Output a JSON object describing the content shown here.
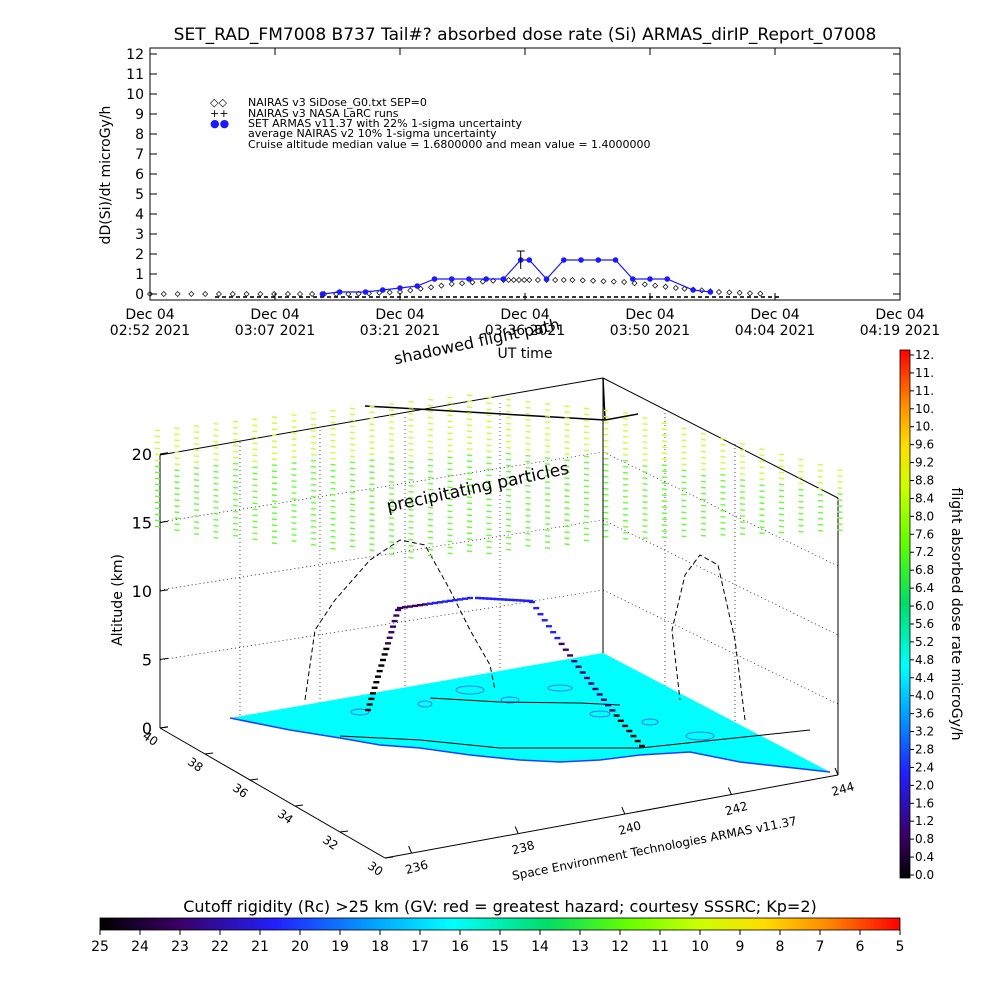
{
  "title": "SET_RAD_FM7008  B737 Tail#? absorbed dose rate (Si) ARMAS_dirIP_Report_07008",
  "time_panel": {
    "ylabel": "dD(Si)/dt microGy/h",
    "xlabel": "UT time",
    "x_ticks": [
      {
        "line1": "Dec 04",
        "line2": "02:52 2021"
      },
      {
        "line1": "Dec 04",
        "line2": "03:07 2021"
      },
      {
        "line1": "Dec 04",
        "line2": "03:21 2021"
      },
      {
        "line1": "Dec 04",
        "line2": "03:36 2021"
      },
      {
        "line1": "Dec 04",
        "line2": "03:50 2021"
      },
      {
        "line1": "Dec 04",
        "line2": "04:04 2021"
      },
      {
        "line1": "Dec 04",
        "line2": "04:19 2021"
      }
    ],
    "legend": [
      {
        "symbol": "◇◇",
        "text": "NAIRAS v3 SiDose_G0.txt SEP=0"
      },
      {
        "symbol": "++",
        "text": "NAIRAS v3 NASA LaRC runs"
      },
      {
        "symbol": "●●",
        "text": "SET ARMAS v11.37 with 22% 1-sigma uncertainty",
        "color": "#1a1aff"
      },
      {
        "symbol": "",
        "text": "average NAIRAS v2 10% 1-sigma uncertainty"
      },
      {
        "symbol": "",
        "text": "Cruise altitude median value = 1.6800000 and mean value = 1.4000000"
      }
    ]
  },
  "map_panel": {
    "ylabel": "Altitude (km)",
    "z_ticks": [
      "0",
      "5",
      "10",
      "15",
      "20"
    ],
    "lat_ticks": [
      "40",
      "38",
      "36",
      "34",
      "32",
      "30"
    ],
    "lon_ticks": [
      "236",
      "238",
      "240",
      "242",
      "244"
    ],
    "annotation_top": "shadowed flight path",
    "annotation_mid": "precipitating particles",
    "credit": "Space Environment Technologies ARMAS v11.37"
  },
  "right_colorbar": {
    "label": "flight absorbed dose rate microGy/h",
    "ticks": [
      "12.",
      "11.",
      "11.",
      "10.",
      "10.",
      "9.6",
      "9.2",
      "8.8",
      "8.4",
      "8.0",
      "7.6",
      "7.2",
      "6.8",
      "6.4",
      "6.0",
      "5.6",
      "5.2",
      "4.8",
      "4.4",
      "4.0",
      "3.6",
      "3.2",
      "2.8",
      "2.4",
      "2.0",
      "1.6",
      "1.2",
      "0.8",
      "0.4",
      "0.0"
    ]
  },
  "bottom_colorbar": {
    "label": "Cutoff rigidity (Rc) >25 km (GV: red = greatest hazard; courtesy SSSRC; Kp=2)",
    "ticks": [
      "25",
      "24",
      "23",
      "22",
      "21",
      "20",
      "19",
      "18",
      "17",
      "16",
      "15",
      "14",
      "13",
      "12",
      "11",
      "10",
      "9",
      "8",
      "7",
      "6",
      "5"
    ]
  },
  "colors": {
    "armas_series": "#1a1aff",
    "surface": "#00ffff",
    "precip": "#66ff33"
  },
  "chart_data": [
    {
      "type": "scatter",
      "xlabel": "UT time",
      "ylabel": "dD(Si)/dt microGy/h",
      "ylim": [
        0,
        12
      ],
      "xlim": [
        "02:52",
        "04:19"
      ],
      "y_ticks": [
        0,
        1,
        2,
        3,
        4,
        5,
        6,
        7,
        8,
        9,
        10,
        11,
        12
      ],
      "series": [
        {
          "name": "SET ARMAS v11.37 with 22% 1-sigma uncertainty",
          "x": [
            "03:12",
            "03:14",
            "03:17",
            "03:19",
            "03:21",
            "03:23",
            "03:25",
            "03:27",
            "03:29",
            "03:31",
            "03:33",
            "03:35",
            "03:36",
            "03:38",
            "03:40",
            "03:42",
            "03:44",
            "03:46",
            "03:48",
            "03:50",
            "03:52",
            "03:55",
            "03:57"
          ],
          "values": [
            0.0,
            0.1,
            0.1,
            0.2,
            0.3,
            0.4,
            0.75,
            0.75,
            0.75,
            0.75,
            0.75,
            1.7,
            1.7,
            0.75,
            1.7,
            1.7,
            1.7,
            1.7,
            0.75,
            0.75,
            0.75,
            0.2,
            0.1
          ]
        },
        {
          "name": "NAIRAS v3 SiDose_G0.txt SEP=0",
          "x": [
            "02:52",
            "03:00",
            "03:08",
            "03:15",
            "03:21",
            "03:27",
            "03:33",
            "03:36",
            "03:41",
            "03:47",
            "03:53",
            "03:58",
            "04:04"
          ],
          "values": [
            0.0,
            0.0,
            0.0,
            0.0,
            0.1,
            0.5,
            0.7,
            0.7,
            0.7,
            0.6,
            0.3,
            0.1,
            0.0
          ]
        }
      ]
    },
    {
      "type": "scatter",
      "xlabel": "Longitude",
      "ylabel": "Altitude (km)",
      "zlim": [
        0,
        20
      ],
      "series": [
        {
          "name": "flight absorbed dose rate microGy/h",
          "x": [
            240.8,
            240.0,
            239.2,
            238.6,
            238.3,
            238.4,
            238.8,
            239.4,
            240.1,
            240.7,
            241.1
          ],
          "values": [
            0,
            4,
            8,
            9.5,
            9.8,
            9.8,
            9.5,
            8,
            5,
            2,
            0
          ]
        }
      ]
    }
  ]
}
